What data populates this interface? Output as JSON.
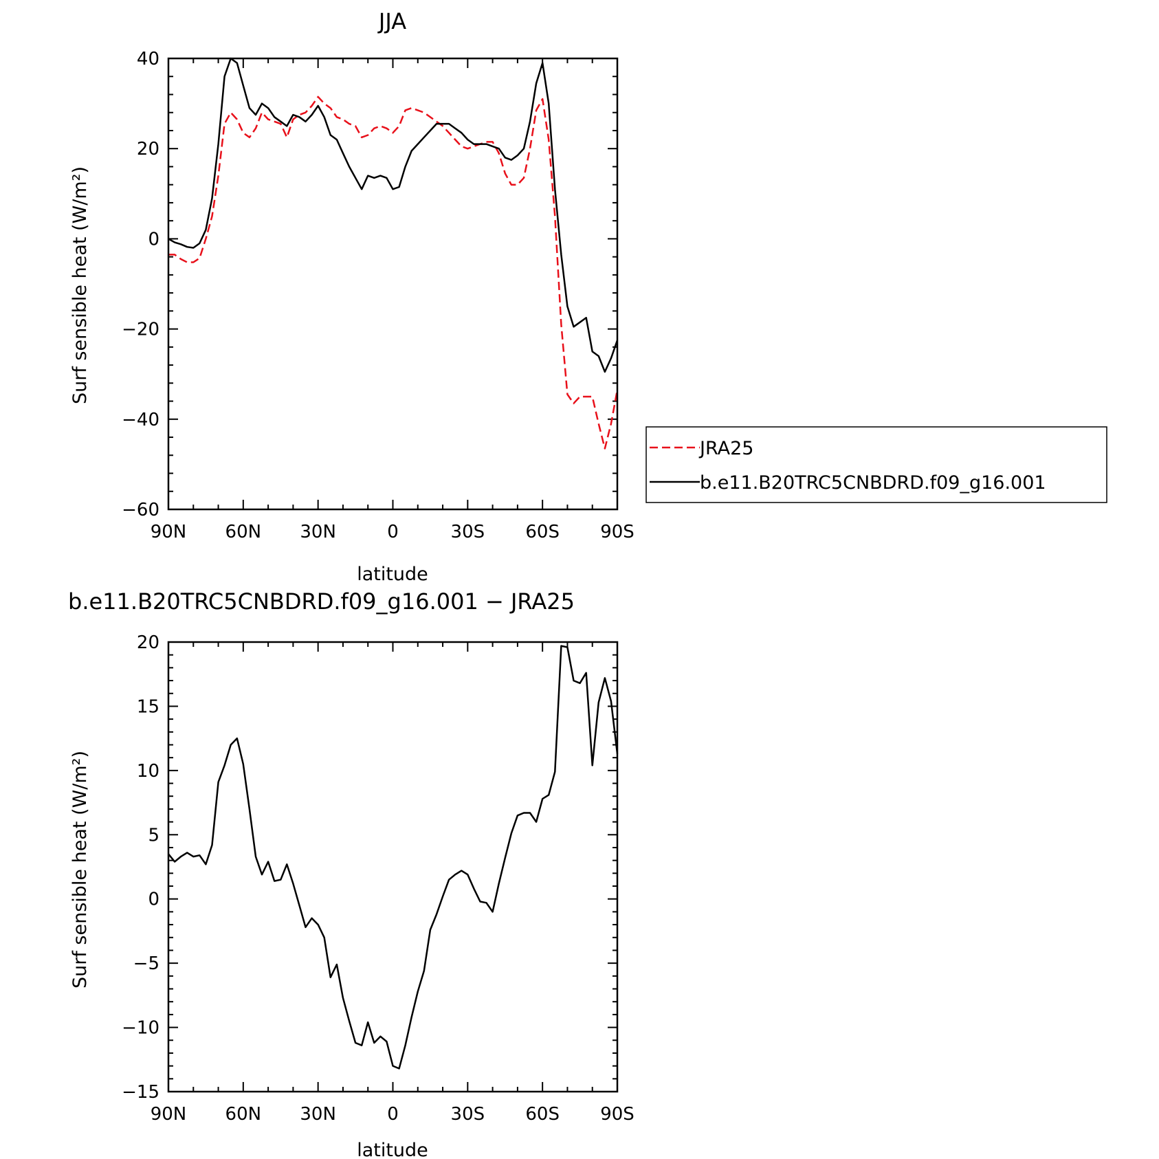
{
  "chart_data": [
    {
      "type": "line",
      "title": "JJA",
      "xlabel": "latitude",
      "ylabel": "Surf sensible heat (W/m²)",
      "xlim": [
        90,
        -90
      ],
      "ylim": [
        -60,
        40
      ],
      "xticks": [
        90,
        60,
        30,
        0,
        -30,
        -60,
        -90
      ],
      "xtick_labels": [
        "90N",
        "60N",
        "30N",
        "0",
        "30S",
        "60S",
        "90S"
      ],
      "yticks": [
        -60,
        -40,
        -20,
        0,
        20,
        40
      ],
      "ytick_labels": [
        "−60",
        "−40",
        "−20",
        "0",
        "20",
        "40"
      ],
      "legend_position": "right",
      "series": [
        {
          "name": "JRA25",
          "color": "#e8101a",
          "style": "dashed",
          "x": [
            90,
            87.5,
            85,
            82.5,
            80,
            77.5,
            75,
            72.5,
            70,
            67.5,
            65,
            62.5,
            60,
            57.5,
            55,
            52.5,
            50,
            47.5,
            45,
            42.5,
            40,
            37.5,
            35,
            32.5,
            30,
            27.5,
            25,
            22.5,
            20,
            17.5,
            15,
            12.5,
            10,
            7.5,
            5,
            2.5,
            0,
            -2.5,
            -5,
            -7.5,
            -10,
            -12.5,
            -15,
            -17.5,
            -20,
            -22.5,
            -25,
            -27.5,
            -30,
            -32.5,
            -35,
            -37.5,
            -40,
            -42.5,
            -45,
            -47.5,
            -50,
            -52.5,
            -55,
            -57.5,
            -60,
            -62.5,
            -65,
            -67.5,
            -70,
            -72.5,
            -75,
            -77.5,
            -80,
            -82.5,
            -85,
            -87.5,
            -90
          ],
          "y": [
            -3.5,
            -3.5,
            -4.5,
            -5.2,
            -5.2,
            -4.3,
            0.0,
            5.0,
            14.0,
            25.5,
            28.0,
            26.5,
            23.5,
            22.5,
            24.5,
            28.0,
            26.5,
            26.0,
            25.5,
            22.5,
            26.5,
            27.5,
            28.0,
            29.5,
            31.5,
            30.0,
            29.0,
            27.0,
            26.5,
            25.5,
            25.0,
            22.5,
            23.0,
            24.5,
            25.0,
            24.5,
            23.5,
            25.0,
            28.5,
            29.0,
            28.5,
            28.0,
            27.0,
            26.0,
            25.0,
            23.5,
            22.0,
            20.5,
            20.0,
            20.5,
            21.0,
            21.5,
            21.5,
            19.0,
            14.5,
            12.0,
            12.0,
            13.5,
            20.0,
            28.5,
            31.0,
            22.0,
            5.0,
            -19.0,
            -34.5,
            -36.5,
            -35.0,
            -35.0,
            -35.0,
            -41.0,
            -46.5,
            -41.0,
            -33.5
          ]
        },
        {
          "name": "b.e11.B20TRC5CNBDRD.f09_g16.001",
          "color": "#000000",
          "style": "solid",
          "x": [
            90,
            87.5,
            85,
            82.5,
            80,
            77.5,
            75,
            72.5,
            70,
            67.5,
            65,
            62.5,
            60,
            57.5,
            55,
            52.5,
            50,
            47.5,
            45,
            42.5,
            40,
            37.5,
            35,
            32.5,
            30,
            27.5,
            25,
            22.5,
            20,
            17.5,
            15,
            12.5,
            10,
            7.5,
            5,
            2.5,
            0,
            -2.5,
            -5,
            -7.5,
            -10,
            -12.5,
            -15,
            -17.5,
            -20,
            -22.5,
            -25,
            -27.5,
            -30,
            -32.5,
            -35,
            -37.5,
            -40,
            -42.5,
            -45,
            -47.5,
            -50,
            -52.5,
            -55,
            -57.5,
            -60,
            -62.5,
            -65,
            -67.5,
            -70,
            -72.5,
            -75,
            -77.5,
            -80,
            -82.5,
            -85,
            -87.5,
            -90
          ],
          "y": [
            0.0,
            -0.8,
            -1.2,
            -1.8,
            -2.0,
            -1.0,
            2.0,
            9.0,
            21.0,
            36.0,
            40.0,
            39.0,
            34.0,
            29.0,
            27.5,
            30.0,
            29.0,
            27.0,
            26.0,
            25.0,
            27.5,
            27.0,
            26.0,
            27.5,
            29.5,
            27.0,
            23.0,
            22.0,
            19.0,
            16.0,
            13.5,
            11.0,
            14.0,
            13.5,
            14.0,
            13.5,
            11.0,
            11.5,
            16.0,
            19.5,
            21.0,
            22.5,
            24.0,
            25.5,
            25.5,
            25.5,
            24.5,
            23.5,
            22.0,
            21.0,
            21.0,
            21.0,
            20.5,
            20.0,
            18.0,
            17.5,
            18.5,
            20.0,
            26.0,
            34.5,
            39.0,
            30.0,
            11.0,
            -3.5,
            -15.0,
            -19.5,
            -18.5,
            -17.5,
            -25.0,
            -26.0,
            -29.5,
            -26.5,
            -22.5
          ]
        }
      ]
    },
    {
      "type": "line",
      "title": "b.e11.B20TRC5CNBDRD.f09_g16.001 − JRA25",
      "xlabel": "latitude",
      "ylabel": "Surf sensible heat (W/m²)",
      "xlim": [
        90,
        -90
      ],
      "ylim": [
        -15,
        20
      ],
      "xticks": [
        90,
        60,
        30,
        0,
        -30,
        -60,
        -90
      ],
      "xtick_labels": [
        "90N",
        "60N",
        "30N",
        "0",
        "30S",
        "60S",
        "90S"
      ],
      "yticks": [
        -15,
        -10,
        -5,
        0,
        5,
        10,
        15,
        20
      ],
      "ytick_labels": [
        "−15",
        "−10",
        "−5",
        "0",
        "5",
        "10",
        "15",
        "20"
      ],
      "series": [
        {
          "color": "#000000",
          "style": "solid",
          "x": [
            90,
            87.5,
            85,
            82.5,
            80,
            77.5,
            75,
            72.5,
            70,
            67.5,
            65,
            62.5,
            60,
            57.5,
            55,
            52.5,
            50,
            47.5,
            45,
            42.5,
            40,
            37.5,
            35,
            32.5,
            30,
            27.5,
            25,
            22.5,
            20,
            17.5,
            15,
            12.5,
            10,
            7.5,
            5,
            2.5,
            0,
            -2.5,
            -5,
            -7.5,
            -10,
            -12.5,
            -15,
            -17.5,
            -20,
            -22.5,
            -25,
            -27.5,
            -30,
            -32.5,
            -35,
            -37.5,
            -40,
            -42.5,
            -45,
            -47.5,
            -50,
            -52.5,
            -55,
            -57.5,
            -60,
            -62.5,
            -65,
            -67.5,
            -70,
            -72.5,
            -75,
            -77.5,
            -80,
            -82.5,
            -85,
            -87.5,
            -90
          ],
          "y": [
            3.5,
            2.9,
            3.3,
            3.6,
            3.3,
            3.4,
            2.7,
            4.2,
            9.1,
            10.4,
            12.0,
            12.5,
            10.5,
            7.0,
            3.3,
            1.9,
            2.9,
            1.4,
            1.5,
            2.7,
            1.2,
            -0.5,
            -2.2,
            -1.5,
            -2.0,
            -3.0,
            -6.1,
            -5.1,
            -7.7,
            -9.5,
            -11.2,
            -11.4,
            -9.6,
            -11.2,
            -10.7,
            -11.1,
            -13.0,
            -13.2,
            -11.4,
            -9.2,
            -7.2,
            -5.6,
            -2.4,
            -1.2,
            0.2,
            1.5,
            1.9,
            2.2,
            1.9,
            0.8,
            -0.2,
            -0.3,
            -1.0,
            1.2,
            3.2,
            5.1,
            6.5,
            6.7,
            6.7,
            6.0,
            7.8,
            8.1,
            9.9,
            19.7,
            19.6,
            17.0,
            16.8,
            17.6,
            10.4,
            15.3,
            17.2,
            15.4,
            11.3
          ]
        }
      ]
    }
  ]
}
